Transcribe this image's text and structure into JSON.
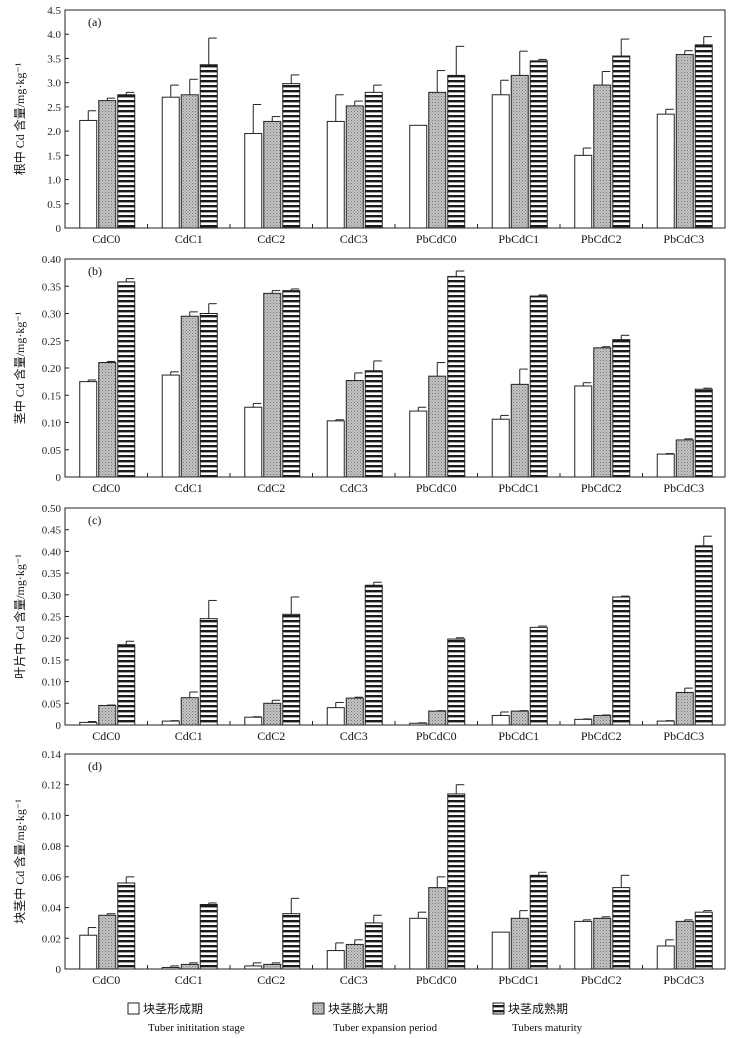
{
  "legend": [
    {
      "zh": "块茎形成期",
      "en": "Tuber inititation stage"
    },
    {
      "zh": "块茎膨大期",
      "en": "Tuber expansion period"
    },
    {
      "zh": "块茎成熟期",
      "en": "Tubers maturity"
    }
  ],
  "colors": {
    "stage1": "#ffffff",
    "stage2": "#b8b8b8",
    "stage3": "#ffffff",
    "stroke": "#222222"
  },
  "chart_data": [
    {
      "type": "bar",
      "panel_label": "(a)",
      "ylabel": "根中 Cd 含量/mg·kg⁻¹",
      "ylim": [
        0,
        4.5
      ],
      "yticks": [
        "0",
        "0.5",
        "1.0",
        "1.5",
        "2.0",
        "2.5",
        "3.0",
        "3.5",
        "4.0",
        "4.5"
      ],
      "categories": [
        "CdC0",
        "CdC1",
        "CdC2",
        "CdC3",
        "PbCdC0",
        "PbCdC1",
        "PbCdC2",
        "PbCdC3"
      ],
      "series": [
        {
          "values": [
            2.22,
            2.7,
            1.95,
            2.2,
            2.12,
            2.75,
            1.5,
            2.35
          ],
          "errors": [
            0.2,
            0.25,
            0.6,
            0.55,
            0,
            0.3,
            0.15,
            0.1
          ]
        },
        {
          "values": [
            2.63,
            2.75,
            2.2,
            2.52,
            2.8,
            3.15,
            2.95,
            3.58
          ],
          "errors": [
            0.05,
            0.32,
            0.1,
            0.1,
            0.45,
            0.5,
            0.28,
            0.08
          ]
        },
        {
          "values": [
            2.75,
            3.37,
            2.98,
            2.8,
            3.15,
            3.45,
            3.55,
            3.78
          ],
          "errors": [
            0.05,
            0.55,
            0.18,
            0.15,
            0.6,
            0.03,
            0.35,
            0.17
          ]
        }
      ]
    },
    {
      "type": "bar",
      "panel_label": "(b)",
      "ylabel": "茎中 Cd 含量/mg·kg⁻¹",
      "ylim": [
        0,
        0.4
      ],
      "yticks": [
        "0",
        "0.05",
        "0.10",
        "0.15",
        "0.20",
        "0.25",
        "0.30",
        "0.35",
        "0.40"
      ],
      "categories": [
        "CdC0",
        "CdC1",
        "CdC2",
        "CdC3",
        "PbCdC0",
        "PbCdC1",
        "PbCdC2",
        "PbCdC3"
      ],
      "series": [
        {
          "values": [
            0.175,
            0.187,
            0.128,
            0.103,
            0.121,
            0.106,
            0.167,
            0.042
          ],
          "errors": [
            0.003,
            0.006,
            0.007,
            0.002,
            0.007,
            0.007,
            0.006,
            0.001
          ]
        },
        {
          "values": [
            0.21,
            0.295,
            0.337,
            0.177,
            0.185,
            0.17,
            0.237,
            0.068
          ],
          "errors": [
            0.002,
            0.008,
            0.005,
            0.014,
            0.025,
            0.028,
            0.002,
            0.002
          ]
        },
        {
          "values": [
            0.358,
            0.3,
            0.342,
            0.195,
            0.368,
            0.332,
            0.252,
            0.161
          ],
          "errors": [
            0.006,
            0.018,
            0.003,
            0.018,
            0.01,
            0.002,
            0.008,
            0.002
          ]
        }
      ]
    },
    {
      "type": "bar",
      "panel_label": "(c)",
      "ylabel": "叶片中 Cd 含量/mg·kg⁻¹",
      "ylim": [
        0,
        0.5
      ],
      "yticks": [
        "0",
        "0.05",
        "0.10",
        "0.15",
        "0.20",
        "0.25",
        "0.30",
        "0.35",
        "0.40",
        "0.45",
        "0.50"
      ],
      "categories": [
        "CdC0",
        "CdC1",
        "CdC2",
        "CdC3",
        "PbCdC0",
        "PbCdC1",
        "PbCdC2",
        "PbCdC3"
      ],
      "series": [
        {
          "values": [
            0.006,
            0.009,
            0.018,
            0.04,
            0.004,
            0.022,
            0.013,
            0.009
          ],
          "errors": [
            0.002,
            0.001,
            0.001,
            0.012,
            0.001,
            0.008,
            0.001,
            0.001
          ]
        },
        {
          "values": [
            0.045,
            0.063,
            0.05,
            0.062,
            0.032,
            0.032,
            0.022,
            0.075
          ],
          "errors": [
            0.001,
            0.013,
            0.007,
            0.002,
            0.001,
            0.001,
            0.001,
            0.01
          ]
        },
        {
          "values": [
            0.185,
            0.245,
            0.255,
            0.322,
            0.198,
            0.225,
            0.295,
            0.413
          ],
          "errors": [
            0.008,
            0.042,
            0.04,
            0.007,
            0.003,
            0.003,
            0.002,
            0.022
          ]
        }
      ]
    },
    {
      "type": "bar",
      "panel_label": "(d)",
      "ylabel": "块茎中 Cd 含量/mg·kg⁻¹",
      "ylim": [
        0,
        0.14
      ],
      "yticks": [
        "0",
        "0.02",
        "0.04",
        "0.06",
        "0.08",
        "0.10",
        "0.12",
        "0.14"
      ],
      "categories": [
        "CdC0",
        "CdC1",
        "CdC2",
        "CdC3",
        "PbCdC0",
        "PbCdC1",
        "PbCdC2",
        "PbCdC3"
      ],
      "series": [
        {
          "values": [
            0.022,
            0.001,
            0.002,
            0.012,
            0.033,
            0.024,
            0.031,
            0.015
          ],
          "errors": [
            0.005,
            0.001,
            0.002,
            0.005,
            0.004,
            0,
            0.001,
            0.004
          ]
        },
        {
          "values": [
            0.035,
            0.003,
            0.003,
            0.016,
            0.053,
            0.033,
            0.033,
            0.031
          ],
          "errors": [
            0.001,
            0.001,
            0.001,
            0.003,
            0.007,
            0.005,
            0.001,
            0.001
          ]
        },
        {
          "values": [
            0.056,
            0.042,
            0.036,
            0.03,
            0.114,
            0.061,
            0.053,
            0.037
          ],
          "errors": [
            0.004,
            0.001,
            0.01,
            0.005,
            0.006,
            0.002,
            0.008,
            0.001
          ]
        }
      ]
    }
  ]
}
